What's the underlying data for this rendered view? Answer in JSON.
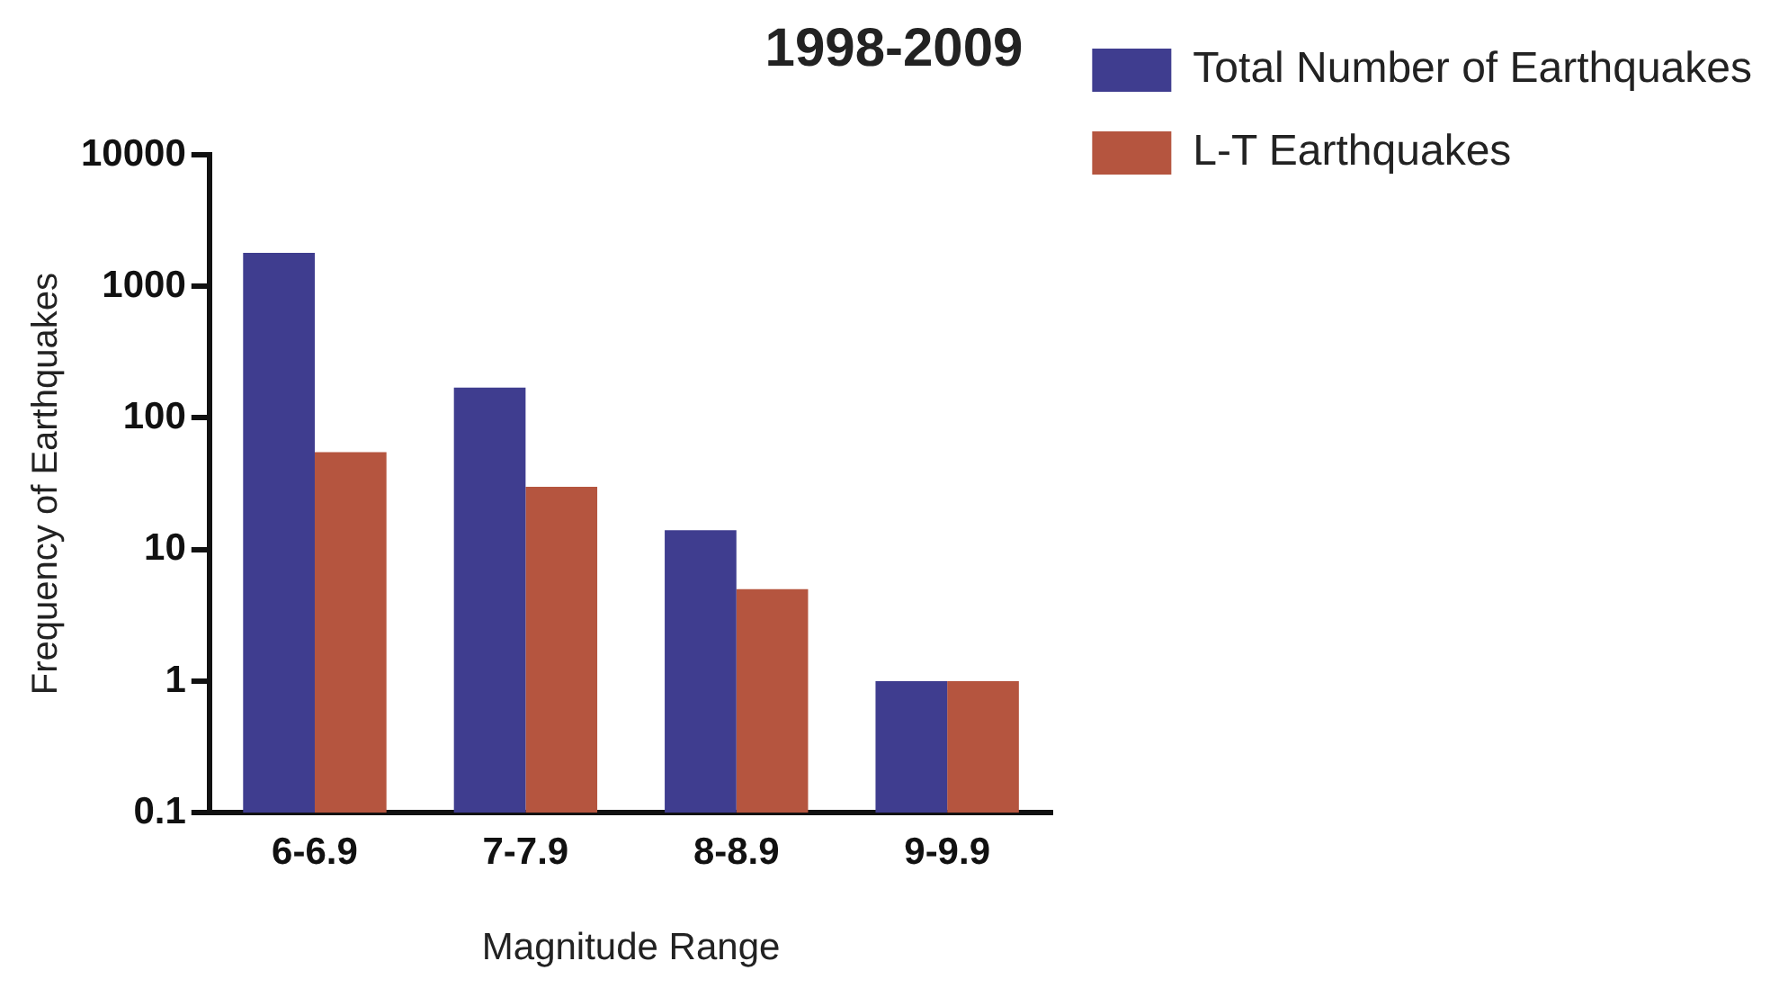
{
  "chart_data": {
    "type": "bar",
    "title": "1998-2009",
    "xlabel": "Magnitude Range",
    "ylabel": "Frequency of Earthquakes",
    "categories": [
      "6-6.9",
      "7-7.9",
      "8-8.9",
      "9-9.9"
    ],
    "series": [
      {
        "name": "Total Number of Earthquakes",
        "color": "#3f3d8f",
        "values": [
          1800,
          170,
          14,
          1
        ]
      },
      {
        "name": "L-T Earthquakes",
        "color": "#b5553f",
        "values": [
          55,
          30,
          5,
          1
        ]
      }
    ],
    "log": "y",
    "ylim": [
      0.1,
      10000
    ],
    "yticks": [
      0.1,
      1,
      10,
      100,
      1000,
      10000
    ],
    "grid": false,
    "legend": "top right"
  }
}
